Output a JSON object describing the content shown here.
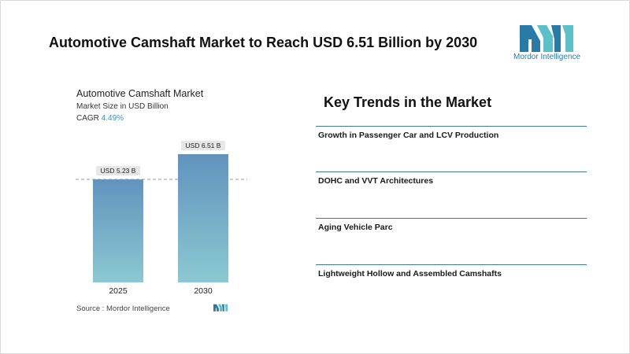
{
  "header": {
    "title": "Automotive Camshaft Market to Reach USD 6.51 Billion by 2030",
    "brand_name": "Mordor Intelligence",
    "brand_colors": [
      "#2a7aa8",
      "#5bc0c8"
    ],
    "logo_icon": "mordor-intelligence-logo-icon"
  },
  "chart": {
    "title": "Automotive Camshaft Market",
    "subtitle": "Market Size in USD Billion",
    "cagr_label": "CAGR",
    "cagr_value": "4.49%",
    "source": "Source :  Mordor Intelligence"
  },
  "chart_data": {
    "type": "bar",
    "categories": [
      "2025",
      "2030"
    ],
    "values": [
      5.23,
      6.51
    ],
    "data_labels": [
      "USD 5.23 B",
      "USD 6.51 B"
    ],
    "title": "Automotive Camshaft Market",
    "ylabel": "Market Size in USD Billion",
    "grid": false,
    "reference_line": "dashed line at 2025 value",
    "colors": {
      "bar_top": "#6193bd",
      "bar_bottom": "#8cc8d2",
      "label_bg": "#e6e6e6"
    }
  },
  "trends": {
    "title": "Key Trends in the Market",
    "items": [
      {
        "label": "Growth in Passenger Car and LCV Production"
      },
      {
        "label": "DOHC and VVT Architectures"
      },
      {
        "label": "Aging Vehicle Parc"
      },
      {
        "label": "Lightweight Hollow and Assembled Camshafts"
      }
    ],
    "divider_color": "#3f7a8f"
  }
}
